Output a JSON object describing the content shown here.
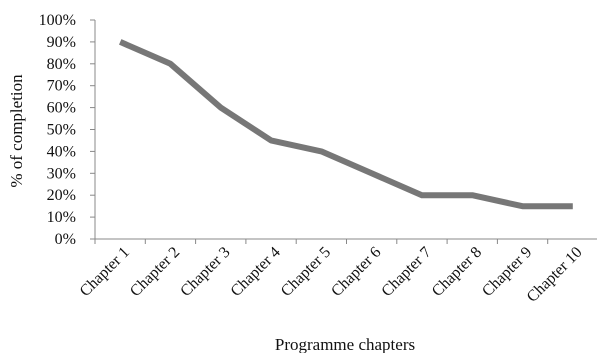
{
  "chart_data": {
    "type": "line",
    "categories": [
      "Chapter 1",
      "Chapter 2",
      "Chapter 3",
      "Chapter 4",
      "Chapter 5",
      "Chapter 6",
      "Chapter 7",
      "Chapter 8",
      "Chapter 9",
      "Chapter 10"
    ],
    "series": [
      {
        "values": [
          0.9,
          0.8,
          0.6,
          0.45,
          0.4,
          0.3,
          0.2,
          0.2,
          0.15,
          0.15
        ],
        "color": "#777777"
      }
    ],
    "yticks": [
      "0%",
      "10%",
      "20%",
      "30%",
      "40%",
      "50%",
      "60%",
      "70%",
      "80%",
      "90%",
      "100%"
    ],
    "ylim": [
      0,
      1
    ],
    "xlabel": "Programme chapters",
    "ylabel": "% of completion",
    "grid": false,
    "legend": "none",
    "axis_color": "#888888"
  }
}
